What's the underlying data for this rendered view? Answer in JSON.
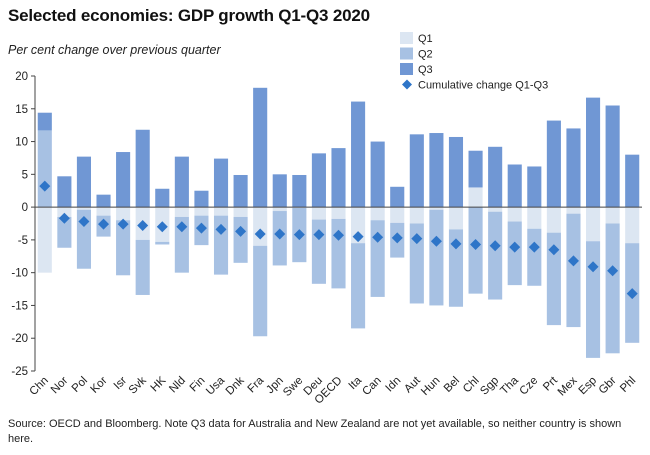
{
  "chart_data": {
    "type": "bar",
    "title": "Selected economies: GDP growth Q1-Q3 2020",
    "subtitle": "Per cent change over previous quarter",
    "ylim": [
      -25,
      20
    ],
    "yticks": [
      20,
      15,
      10,
      5,
      0,
      -5,
      -10,
      -15,
      -20,
      -25
    ],
    "grid": false,
    "legend_position": "top-right",
    "categories": [
      "Chn",
      "Nor",
      "Pol",
      "Kor",
      "Isr",
      "Svk",
      "HK",
      "Nld",
      "Fin",
      "Usa",
      "Dnk",
      "Fra",
      "Jpn",
      "Swe",
      "Deu",
      "OECD",
      "Ita",
      "Can",
      "Idn",
      "Aut",
      "Hun",
      "Bel",
      "Chl",
      "Sgp",
      "Tha",
      "Cze",
      "Prt",
      "Mex",
      "Esp",
      "Gbr",
      "Phl"
    ],
    "series": [
      {
        "name": "Q1",
        "color": "#dce6f2",
        "values": [
          -10.0,
          -1.5,
          -0.4,
          -1.3,
          -2.0,
          -5.0,
          -5.3,
          -1.5,
          -1.3,
          -1.3,
          -1.5,
          -5.9,
          -0.6,
          -0.1,
          -1.9,
          -1.8,
          -5.5,
          -2.0,
          -2.4,
          -2.5,
          -0.4,
          -3.4,
          3.0,
          -0.7,
          -2.2,
          -3.3,
          -3.9,
          -1.0,
          -5.2,
          -2.5,
          -5.5
        ]
      },
      {
        "name": "Q2",
        "color": "#a7c1e3",
        "values": [
          11.7,
          -4.7,
          -9.0,
          -3.2,
          -8.4,
          -8.4,
          -0.4,
          -8.5,
          -4.5,
          -9.0,
          -7.0,
          -13.8,
          -8.3,
          -8.3,
          -9.8,
          -10.6,
          -13.0,
          -11.7,
          -5.3,
          -12.2,
          -14.6,
          -11.8,
          -13.2,
          -13.4,
          -9.7,
          -8.7,
          -14.1,
          -17.3,
          -17.8,
          -19.8,
          -15.2
        ]
      },
      {
        "name": "Q3",
        "color": "#7097d4",
        "values": [
          2.7,
          4.7,
          7.7,
          1.9,
          8.4,
          11.8,
          2.8,
          7.7,
          2.5,
          7.4,
          4.9,
          18.2,
          5.0,
          4.9,
          8.2,
          9.0,
          16.1,
          10.0,
          3.1,
          11.1,
          11.3,
          10.7,
          5.6,
          9.2,
          6.5,
          6.2,
          13.2,
          12.0,
          16.7,
          15.5,
          8.0
        ]
      },
      {
        "name": "Cumulative change Q1-Q3",
        "color": "#2e75c8",
        "marker": "diamond",
        "values": [
          3.2,
          -1.7,
          -2.2,
          -2.6,
          -2.6,
          -2.8,
          -3.0,
          -3.0,
          -3.2,
          -3.4,
          -3.7,
          -4.1,
          -4.1,
          -4.2,
          -4.2,
          -4.3,
          -4.5,
          -4.6,
          -4.7,
          -4.8,
          -5.2,
          -5.6,
          -5.7,
          -5.9,
          -6.1,
          -6.1,
          -6.5,
          -8.2,
          -9.1,
          -9.7,
          -13.2
        ]
      }
    ]
  },
  "source": "Source: OECD and Bloomberg. Note Q3 data for Australia and New Zealand are not yet available, so neither country is shown here."
}
